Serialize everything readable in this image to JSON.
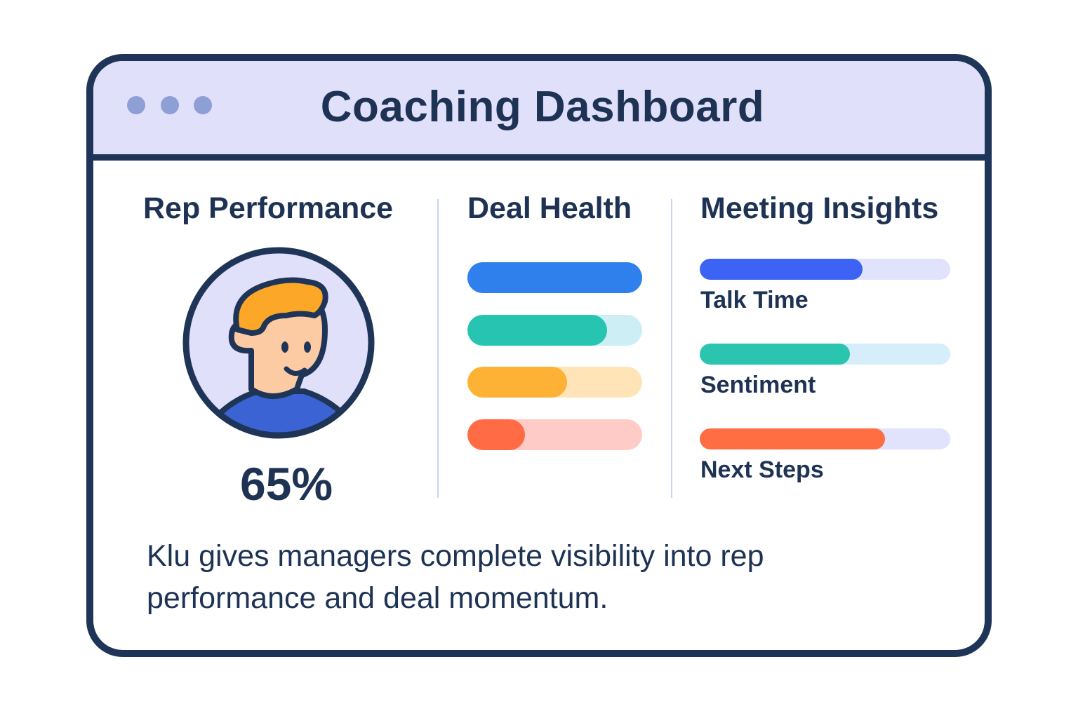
{
  "window": {
    "title": "Coaching Dashboard",
    "controls": [
      "dot",
      "dot",
      "dot"
    ]
  },
  "colors": {
    "frame": "#1f3557",
    "titlebar_bg": "#e0e0fb",
    "window_dots": "#8e9fd6",
    "text": "#1e3354",
    "divider": "#c8d4f2"
  },
  "rep_performance": {
    "heading": "Rep Performance",
    "avatar_icon": "user-avatar-icon",
    "score": "65%"
  },
  "deal_health": {
    "heading": "Deal Health",
    "bars": [
      {
        "value": 100,
        "fill": "#2f80ed",
        "track": "#2f80ed"
      },
      {
        "value": 80,
        "fill": "#26c4b1",
        "track": "#cdeef4"
      },
      {
        "value": 57,
        "fill": "#fdb235",
        "track": "#fee4b6"
      },
      {
        "value": 33,
        "fill": "#ff6b45",
        "track": "#fecbc7"
      }
    ]
  },
  "meeting_insights": {
    "heading": "Meeting Insights",
    "metrics": [
      {
        "label": "Talk Time",
        "value": 65,
        "fill": "#3d63f5",
        "track": "#e1e2fb"
      },
      {
        "label": "Sentiment",
        "value": 60,
        "fill": "#2bc4ae",
        "track": "#d5eefa"
      },
      {
        "label": "Next Steps",
        "value": 74,
        "fill": "#ff6d42",
        "track": "#e1e2fb"
      }
    ]
  },
  "caption": "Klu gives managers complete visibility into rep performance and deal momentum."
}
